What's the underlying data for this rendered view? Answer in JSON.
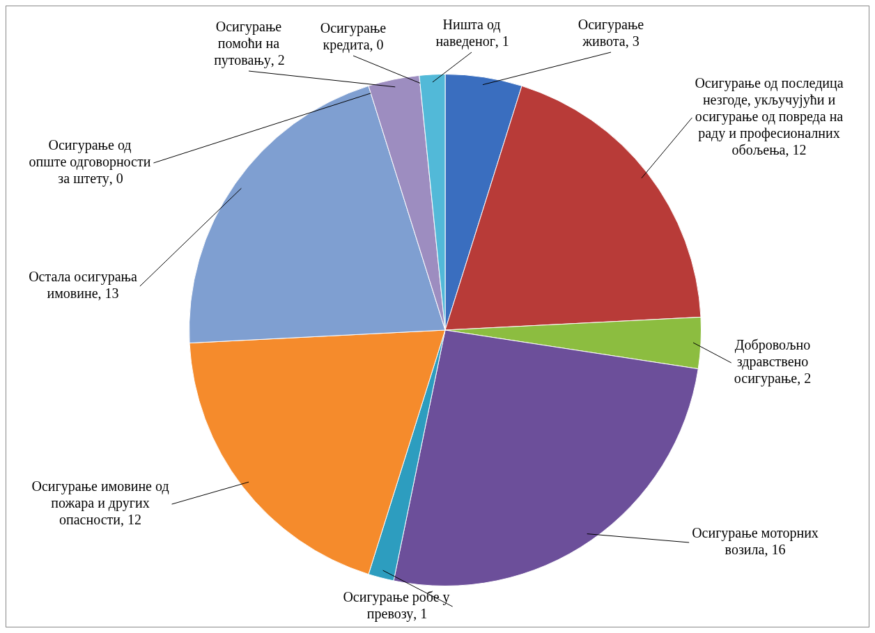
{
  "chart_data": {
    "type": "pie",
    "categories": [
      "Осигурање живота",
      "Осигурање од последица незгоде, укључујући и осигурање од повреда на раду и професионалних обољења",
      "Добровољно здравствено осигурање",
      "Осигурање моторних возила",
      "Осигурање робе у превозу",
      "Осигурање имовине од пожара и других опасности",
      "Остала осигурања имовине",
      "Осигурање од опште одговорности за штету",
      "Осигурање помоћи на путовању",
      "Осигурање кредита",
      "Ништа од наведеног"
    ],
    "values": [
      3,
      12,
      2,
      16,
      1,
      12,
      13,
      0,
      2,
      0,
      1
    ],
    "colors": [
      "#3a6ebf",
      "#b83b38",
      "#8cbd40",
      "#6c4f9a",
      "#2d9dbf",
      "#f58b2c",
      "#7f9fd1",
      "#c0504d",
      "#9d8dc0",
      "#4bacc6",
      "#52b9d8"
    ],
    "value_labels": [
      ", 3",
      ", 12",
      ", 2",
      ", 16",
      ", 1",
      ", 12",
      ", 13",
      ", 0",
      ", 2",
      ", 0",
      ", 1"
    ],
    "legend": false
  }
}
